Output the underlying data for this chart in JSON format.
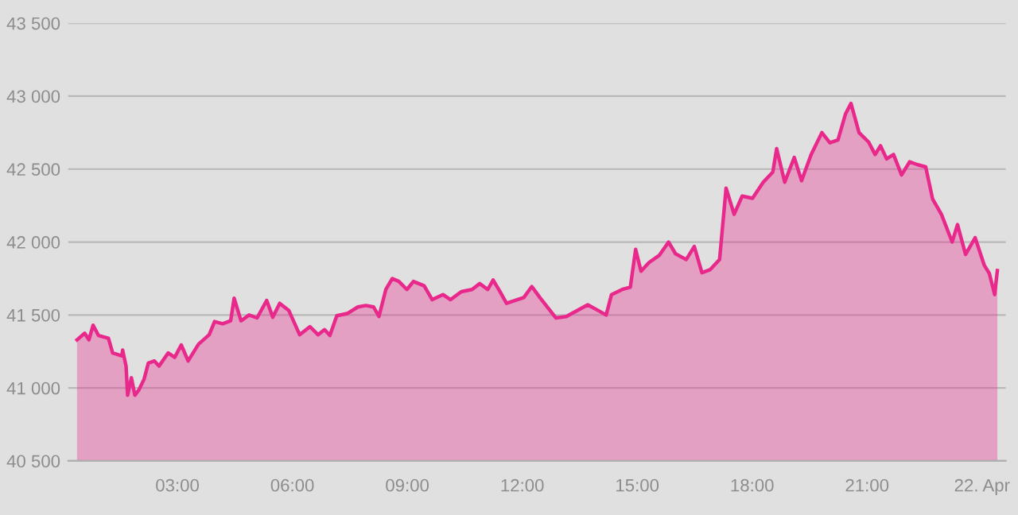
{
  "chart_data": {
    "type": "area",
    "color": "#e8288a",
    "x": [
      0.38,
      0.58,
      0.69,
      0.8,
      0.94,
      1.2,
      1.31,
      1.43,
      1.55,
      1.57,
      1.66,
      1.7,
      1.8,
      1.89,
      1.99,
      2.13,
      2.24,
      2.4,
      2.52,
      2.76,
      2.93,
      3.1,
      3.28,
      3.55,
      3.83,
      3.97,
      4.18,
      4.39,
      4.48,
      4.66,
      4.87,
      5.08,
      5.33,
      5.49,
      5.67,
      5.91,
      6.19,
      6.46,
      6.67,
      6.84,
      6.98,
      7.16,
      7.43,
      7.71,
      7.92,
      8.12,
      8.26,
      8.44,
      8.61,
      8.78,
      8.99,
      9.16,
      9.44,
      9.65,
      9.93,
      10.13,
      10.41,
      10.69,
      10.89,
      11.1,
      11.24,
      11.41,
      11.59,
      12.04,
      12.25,
      12.46,
      12.88,
      13.15,
      13.71,
      13.99,
      14.19,
      14.33,
      14.61,
      14.82,
      14.96,
      15.1,
      15.31,
      15.58,
      15.82,
      16.0,
      16.28,
      16.49,
      16.69,
      16.9,
      17.15,
      17.32,
      17.53,
      17.74,
      18.01,
      18.29,
      18.54,
      18.64,
      18.85,
      19.1,
      19.29,
      19.54,
      19.82,
      20.03,
      20.24,
      20.44,
      20.58,
      20.79,
      21.04,
      21.21,
      21.35,
      21.51,
      21.69,
      21.9,
      22.11,
      22.32,
      22.53,
      22.71,
      22.94,
      23.22,
      23.36,
      23.57,
      23.82,
      24.06,
      24.19,
      24.33,
      24.4
    ],
    "values": [
      41330,
      41375,
      41330,
      41430,
      41360,
      41340,
      41240,
      41230,
      41220,
      41260,
      41150,
      40950,
      41070,
      40950,
      40985,
      41060,
      41170,
      41185,
      41150,
      41240,
      41210,
      41295,
      41185,
      41300,
      41365,
      41455,
      41440,
      41460,
      41615,
      41460,
      41500,
      41480,
      41600,
      41485,
      41580,
      41530,
      41365,
      41420,
      41365,
      41400,
      41360,
      41495,
      41510,
      41555,
      41565,
      41555,
      41490,
      41675,
      41750,
      41730,
      41675,
      41730,
      41700,
      41605,
      41640,
      41605,
      41660,
      41675,
      41715,
      41675,
      41740,
      41665,
      41580,
      41620,
      41695,
      41620,
      41480,
      41490,
      41570,
      41530,
      41500,
      41640,
      41675,
      41690,
      41950,
      41800,
      41860,
      41910,
      42000,
      41920,
      41880,
      41970,
      41790,
      41810,
      41880,
      42370,
      42190,
      42315,
      42300,
      42410,
      42480,
      42640,
      42410,
      42580,
      42420,
      42600,
      42750,
      42680,
      42700,
      42880,
      42950,
      42750,
      42685,
      42600,
      42660,
      42570,
      42600,
      42460,
      42550,
      42530,
      42515,
      42295,
      42190,
      42000,
      42120,
      41915,
      42030,
      41840,
      41785,
      41640,
      41805
    ],
    "xlim": [
      0.15,
      24.62
    ],
    "xticks": [
      {
        "value": 3,
        "label": "03:00"
      },
      {
        "value": 6,
        "label": "06:00"
      },
      {
        "value": 9,
        "label": "09:00"
      },
      {
        "value": 12,
        "label": "12:00"
      },
      {
        "value": 15,
        "label": "15:00"
      },
      {
        "value": 18,
        "label": "18:00"
      },
      {
        "value": 21,
        "label": "21:00"
      },
      {
        "value": 24,
        "label": "22. Apr"
      }
    ],
    "ylim": [
      40500,
      43500
    ],
    "yticks": [
      {
        "value": 40500,
        "label": "40 500"
      },
      {
        "value": 41000,
        "label": "41 000"
      },
      {
        "value": 41500,
        "label": "41 500"
      },
      {
        "value": 42000,
        "label": "42 000"
      },
      {
        "value": 42500,
        "label": "42 500"
      },
      {
        "value": 43000,
        "label": "43 000"
      },
      {
        "value": 43500,
        "label": "43 500"
      }
    ],
    "grid": "y",
    "legend": false
  }
}
